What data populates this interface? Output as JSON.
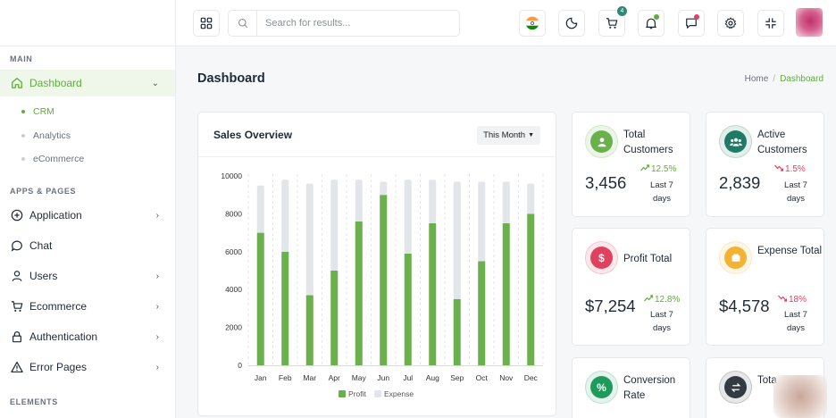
{
  "sidebar": {
    "sections": [
      "MAIN",
      "APPS & PAGES",
      "ELEMENTS"
    ],
    "dashboard": {
      "label": "Dashboard"
    },
    "subitems": [
      "CRM",
      "Analytics",
      "eCommerce"
    ],
    "items": [
      "Application",
      "Chat",
      "Users",
      "Ecommerce",
      "Authentication",
      "Error Pages"
    ]
  },
  "header": {
    "search_placeholder": "Search for results...",
    "cart_count": "4"
  },
  "page": {
    "title": "Dashboard",
    "breadcrumb": {
      "home": "Home",
      "current": "Dashboard"
    }
  },
  "sales": {
    "title": "Sales Overview",
    "period": "This Month"
  },
  "chart_data": {
    "type": "bar",
    "stacked": true,
    "categories": [
      "Jan",
      "Feb",
      "Mar",
      "Apr",
      "May",
      "Jun",
      "Jul",
      "Aug",
      "Sep",
      "Oct",
      "Nov",
      "Dec"
    ],
    "series": [
      {
        "name": "Profit",
        "values": [
          7000,
          6000,
          3700,
          5000,
          7600,
          9000,
          5900,
          7500,
          3500,
          5500,
          7500,
          8000
        ],
        "color": "#6ab04c"
      },
      {
        "name": "Expense",
        "values": [
          2500,
          3800,
          5900,
          4800,
          2200,
          700,
          3900,
          2300,
          6200,
          4200,
          2200,
          1600
        ],
        "color": "#e2e5e9"
      }
    ],
    "yticks": [
      "0",
      "2000",
      "4000",
      "6000",
      "8000",
      "10000"
    ],
    "ylim": [
      0,
      10000
    ],
    "grid": true,
    "legend": "bottom"
  },
  "stats": [
    {
      "label": "Total Customers",
      "value": "3,456",
      "change": "12.5%",
      "trend": "up",
      "period": "Last 7 days",
      "color": "#6ab04c",
      "icon": "user-icon"
    },
    {
      "label": "Active Customers",
      "value": "2,839",
      "change": "1.5%",
      "trend": "down",
      "period": "Last 7 days",
      "color": "#1f7a66",
      "icon": "users-icon"
    },
    {
      "label": "Profit Total",
      "value": "$7,254",
      "change": "12.8%",
      "trend": "up",
      "period": "Last 7 days",
      "color": "#e0415e",
      "icon": "dollar-icon"
    },
    {
      "label": "Expense Total",
      "value": "$4,578",
      "change": "18%",
      "trend": "down",
      "period": "Last 7 days",
      "color": "#f4b233",
      "icon": "wallet-icon"
    },
    {
      "label": "Conversion Rate",
      "color": "#1f9a5a",
      "icon": "percent-icon"
    },
    {
      "label": "Tota",
      "color": "#333a42",
      "icon": "exchange-icon"
    }
  ]
}
